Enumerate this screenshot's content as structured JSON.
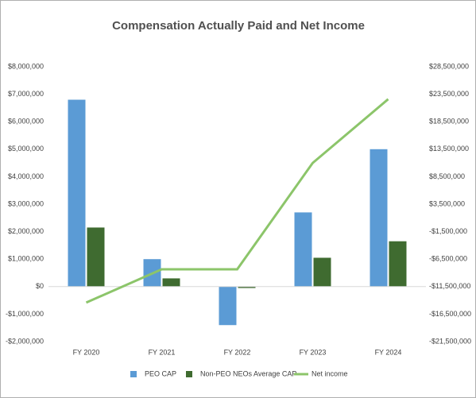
{
  "chart_data": {
    "type": "bar_line",
    "title": "Compensation Actually Paid and Net Income",
    "categories": [
      "FY 2020",
      "FY 2021",
      "FY 2022",
      "FY 2023",
      "FY 2024"
    ],
    "series": [
      {
        "name": "PEO CAP",
        "color": "#5b9bd5",
        "type": "bar",
        "values": [
          6800000,
          1000000,
          -1400000,
          2700000,
          5000000
        ]
      },
      {
        "name": "Non-PEO NEOs Average CAP",
        "color": "#3f6b30",
        "type": "bar",
        "values": [
          2150000,
          300000,
          -50000,
          1050000,
          1650000
        ]
      },
      {
        "name": "Net income",
        "color": "#8cc56a",
        "type": "line",
        "axis": "y2",
        "values": [
          -14400000,
          -8350000,
          -8350000,
          11000000,
          22600000
        ]
      }
    ],
    "ylim": [
      -2000000,
      8000000
    ],
    "yticks": [
      {
        "value": -2000000,
        "label": "-$2,000,000"
      },
      {
        "value": -1000000,
        "label": "-$1,000,000"
      },
      {
        "value": 0,
        "label": "$0"
      },
      {
        "value": 1000000,
        "label": "$1,000,000"
      },
      {
        "value": 2000000,
        "label": "$2,000,000"
      },
      {
        "value": 3000000,
        "label": "$3,000,000"
      },
      {
        "value": 4000000,
        "label": "$4,000,000"
      },
      {
        "value": 5000000,
        "label": "$5,000,000"
      },
      {
        "value": 6000000,
        "label": "$6,000,000"
      },
      {
        "value": 7000000,
        "label": "$7,000,000"
      },
      {
        "value": 8000000,
        "label": "$8,000,000"
      }
    ],
    "y2lim": [
      -21500000,
      28500000
    ],
    "y2ticks": [
      {
        "value": -21500000,
        "label": "-$21,500,000"
      },
      {
        "value": -16500000,
        "label": "-$16,500,000"
      },
      {
        "value": -11500000,
        "label": "-$11,500,000"
      },
      {
        "value": -6500000,
        "label": "-$6,500,000"
      },
      {
        "value": -1500000,
        "label": "-$1,500,000"
      },
      {
        "value": 3500000,
        "label": "$3,500,000"
      },
      {
        "value": 8500000,
        "label": "$8,500,000"
      },
      {
        "value": 13500000,
        "label": "$13,500,000"
      },
      {
        "value": 18500000,
        "label": "$18,500,000"
      },
      {
        "value": 23500000,
        "label": "$23,500,000"
      },
      {
        "value": 28500000,
        "label": "$28,500,000"
      }
    ],
    "grid": false,
    "legend": "bottom"
  }
}
